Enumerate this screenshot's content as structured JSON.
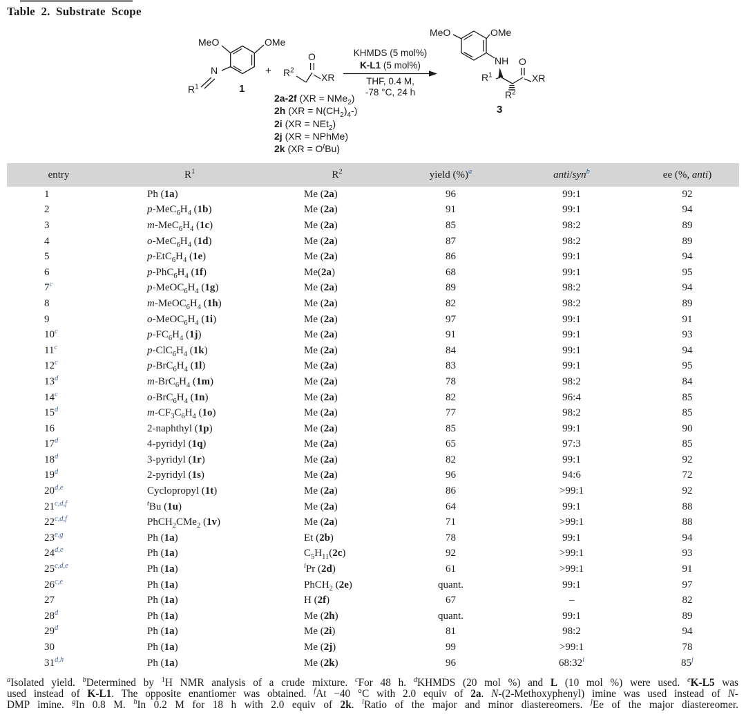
{
  "title": "Table 2. Substrate Scope",
  "colors": {
    "accent_blue": "#41619e",
    "header_band": "#d5d5d5",
    "text": "#1c1c1c"
  },
  "scheme": {
    "reactant1": {
      "meo": "MeO",
      "ome": "OMe",
      "n": "N",
      "r1": "R<sup>1</sup>",
      "label": "1"
    },
    "plus": "+",
    "reactant2": {
      "r2": "R<sup>2</sup>",
      "o": "O",
      "xr": "XR",
      "variants": [
        "<b>2a-2f</b> (XR = NMe<sub>2</sub>)",
        "<b>2h</b> (XR = N(CH<sub>2</sub>)<sub>4</sub>-)",
        "<b>2i</b> (XR = NEt<sub>2</sub>)",
        "<b>2j</b> (XR = NPhMe)",
        "<b>2k</b> (XR = O<sup><i>t</i></sup>Bu)"
      ]
    },
    "conditions": {
      "line1": "KHMDS (5 mol%)",
      "line2": "<b>K-L1</b> (5 mol%)",
      "line3": "THF, 0.4 M,",
      "line4": "-78 °C, 24 h"
    },
    "product": {
      "meo": "MeO",
      "ome": "OMe",
      "nh": "NH",
      "o": "O",
      "r1": "R<sup>1</sup>",
      "r2": "R<sup>2</sup>",
      "xr": "XR",
      "label": "3"
    }
  },
  "table": {
    "headers": {
      "entry": "entry",
      "r1": "R<sup>1</sup>",
      "r2": "R<sup>2</sup>",
      "yield": "yield (%)<sup class='fn'>a</sup>",
      "ratio": "<i>anti</i>/<i>syn</i><sup class='fn'>b</sup>",
      "ee": "ee (%, <i>anti</i>)"
    },
    "rows": [
      {
        "e": "1",
        "n": "",
        "r1": "Ph (<b>1a</b>)",
        "r2": "Me (<b>2a</b>)",
        "y": "96",
        "r": "99:1",
        "ee": "92"
      },
      {
        "e": "2",
        "n": "",
        "r1": "<i>p</i>-MeC<sub>6</sub>H<sub>4</sub> (<b>1b</b>)",
        "r2": "Me (<b>2a</b>)",
        "y": "91",
        "r": "99:1",
        "ee": "94"
      },
      {
        "e": "3",
        "n": "",
        "r1": "<i>m</i>-MeC<sub>6</sub>H<sub>4</sub> (<b>1c</b>)",
        "r2": "Me (<b>2a</b>)",
        "y": "85",
        "r": "98:2",
        "ee": "89"
      },
      {
        "e": "4",
        "n": "",
        "r1": "<i>o</i>-MeC<sub>6</sub>H<sub>4</sub> (<b>1d</b>)",
        "r2": "Me (<b>2a</b>)",
        "y": "87",
        "r": "98:2",
        "ee": "89"
      },
      {
        "e": "5",
        "n": "",
        "r1": "<i>p</i>-EtC<sub>6</sub>H<sub>4</sub> (<b>1e</b>)",
        "r2": "Me (<b>2a</b>)",
        "y": "86",
        "r": "99:1",
        "ee": "94"
      },
      {
        "e": "6",
        "n": "",
        "r1": "<i>p</i>-PhC<sub>6</sub>H<sub>4</sub> (<b>1f</b>)",
        "r2": "Me(<b>2a</b>)",
        "y": "68",
        "r": "99:1",
        "ee": "95"
      },
      {
        "e": "7",
        "n": "c",
        "r1": "<i>p</i>-MeOC<sub>6</sub>H<sub>4</sub> (<b>1g</b>)",
        "r2": "Me (<b>2a</b>)",
        "y": "89",
        "r": "98:2",
        "ee": "94"
      },
      {
        "e": "8",
        "n": "",
        "r1": "<i>m</i>-MeOC<sub>6</sub>H<sub>4</sub> (<b>1h</b>)",
        "r2": "Me (<b>2a</b>)",
        "y": "82",
        "r": "98:2",
        "ee": "89"
      },
      {
        "e": "9",
        "n": "",
        "r1": "<i>o</i>-MeOC<sub>6</sub>H<sub>4</sub> (<b>1i</b>)",
        "r2": "Me (<b>2a</b>)",
        "y": "97",
        "r": "99:1",
        "ee": "91"
      },
      {
        "e": "10",
        "n": "c",
        "r1": "<i>p</i>-FC<sub>6</sub>H<sub>4</sub> (<b>1j</b>)",
        "r2": "Me (<b>2a</b>)",
        "y": "91",
        "r": "99:1",
        "ee": "93"
      },
      {
        "e": "11",
        "n": "c",
        "r1": "<i>p</i>-ClC<sub>6</sub>H<sub>4</sub> (<b>1k</b>)",
        "r2": "Me (<b>2a</b>)",
        "y": "84",
        "r": "99:1",
        "ee": "94"
      },
      {
        "e": "12",
        "n": "c",
        "r1": "<i>p</i>-BrC<sub>6</sub>H<sub>4</sub> (<b>1l</b>)",
        "r2": "Me (<b>2a</b>)",
        "y": "83",
        "r": "99:1",
        "ee": "95"
      },
      {
        "e": "13",
        "n": "d",
        "r1": "<i>m</i>-BrC<sub>6</sub>H<sub>4</sub> (<b>1m</b>)",
        "r2": "Me (<b>2a</b>)",
        "y": "78",
        "r": "98:2",
        "ee": "84"
      },
      {
        "e": "14",
        "n": "c",
        "r1": "<i>o</i>-BrC<sub>6</sub>H<sub>4</sub> (<b>1n</b>)",
        "r2": "Me (<b>2a</b>)",
        "y": "82",
        "r": "96:4",
        "ee": "85"
      },
      {
        "e": "15",
        "n": "d",
        "r1": "<i>m</i>-CF<sub>3</sub>C<sub>6</sub>H<sub>4</sub> (<b>1o</b>)",
        "r2": "Me (<b>2a</b>)",
        "y": "77",
        "r": "98:2",
        "ee": "85"
      },
      {
        "e": "16",
        "n": "",
        "r1": "2-naphthyl (<b>1p</b>)",
        "r2": "Me (<b>2a</b>)",
        "y": "85",
        "r": "99:1",
        "ee": "90"
      },
      {
        "e": "17",
        "n": "d",
        "r1": "4-pyridyl (<b>1q</b>)",
        "r2": "Me (<b>2a</b>)",
        "y": "65",
        "r": "97:3",
        "ee": "85"
      },
      {
        "e": "18",
        "n": "d",
        "r1": "3-pyridyl (<b>1r</b>)",
        "r2": "Me (<b>2a</b>)",
        "y": "82",
        "r": "99:1",
        "ee": "92"
      },
      {
        "e": "19",
        "n": "d",
        "r1": "2-pyridyl (<b>1s</b>)",
        "r2": "Me (<b>2a</b>)",
        "y": "96",
        "r": "94:6",
        "ee": "72"
      },
      {
        "e": "20",
        "n": "d,e",
        "r1": "Cyclopropyl (<b>1t</b>)",
        "r2": "Me (<b>2a</b>)",
        "y": "86",
        "r": ">99:1",
        "ee": "92"
      },
      {
        "e": "21",
        "n": "c,d,f",
        "r1": "<sup><i>t</i></sup>Bu (<b>1u</b>)",
        "r2": "Me (<b>2a</b>)",
        "y": "64",
        "r": "99:1",
        "ee": "88"
      },
      {
        "e": "22",
        "n": "c,d,f",
        "r1": "PhCH<sub>2</sub>CMe<sub>2</sub> (<b>1v</b>)",
        "r2": "Me (<b>2a</b>)",
        "y": "71",
        "r": ">99:1",
        "ee": "88"
      },
      {
        "e": "23",
        "n": "e,g",
        "r1": "Ph (<b>1a</b>)",
        "r2": "Et (<b>2b</b>)",
        "y": "78",
        "r": "99:1",
        "ee": "94"
      },
      {
        "e": "24",
        "n": "d,e",
        "r1": "Ph (<b>1a</b>)",
        "r2": "C<sub>5</sub>H<sub>11</sub>(<b>2c</b>)",
        "y": "92",
        "r": ">99:1",
        "ee": "93"
      },
      {
        "e": "25",
        "n": "c,d,e",
        "r1": "Ph (<b>1a</b>)",
        "r2": "<sup><i>i</i></sup>Pr (<b>2d</b>)",
        "y": "61",
        "r": ">99:1",
        "ee": "91"
      },
      {
        "e": "26",
        "n": "c,e",
        "r1": "Ph (<b>1a</b>)",
        "r2": "PhCH<sub>2</sub> (<b>2e</b>)",
        "y": "quant.",
        "r": "99:1",
        "ee": "97"
      },
      {
        "e": "27",
        "n": "",
        "r1": "Ph (<b>1a</b>)",
        "r2": "H (<b>2f</b>)",
        "y": "67",
        "r": "–",
        "ee": "82"
      },
      {
        "e": "28",
        "n": "d",
        "r1": "Ph (<b>1a</b>)",
        "r2": "Me (<b>2h</b>)",
        "y": "quant.",
        "r": "99:1",
        "ee": "89"
      },
      {
        "e": "29",
        "n": "d",
        "r1": "Ph (<b>1a</b>)",
        "r2": "Me (<b>2i</b>)",
        "y": "81",
        "r": "98:2",
        "ee": "94"
      },
      {
        "e": "30",
        "n": "",
        "r1": "Ph (<b>1a</b>)",
        "r2": "Me (<b>2j</b>)",
        "y": "99",
        "r": ">99:1",
        "ee": "78"
      },
      {
        "e": "31",
        "n": "d,h",
        "r1": "Ph (<b>1a</b>)",
        "r2": "Me (<b>2k</b>)",
        "y": "96",
        "r": "68:32<sup class='fn'>i</sup>",
        "ee": "85<sup class='fn'>j</sup>"
      }
    ]
  },
  "footnotes": {
    "lines": [
      "<sup><i>a</i></sup>Isolated yield. <sup><i>b</i></sup>Determined by <sup>1</sup>H NMR analysis of a crude mixture. <sup><i>c</i></sup>For 48 h. <sup><i>d</i></sup>KHMDS (20 mol %) and <b>L</b> (10 mol %) were used. <sup><i>e</i></sup><b>K-L5</b> was",
      "used instead of <b>K-L1</b>. The opposite enantiomer was obtained. <sup><i>f</i></sup>At −40 °C with 2.0 equiv of <b>2a</b>. <i>N</i>-(2-Methoxyphenyl) imine was used instead of <i>N</i>-",
      "DMP imine. <sup><i>g</i></sup>In 0.8 M. <sup><i>h</i></sup>In 0.2 M for 18 h with 2.0 equiv of <b>2k</b>. <sup><i>i</i></sup>Ratio of the major and minor diastereomers. <sup><i>j</i></sup>Ee of the major diastereomer."
    ]
  }
}
